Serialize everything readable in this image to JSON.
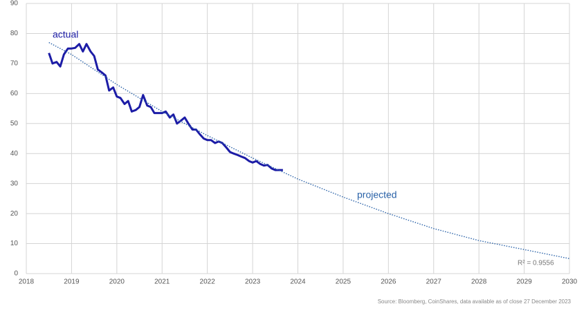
{
  "chart_data": {
    "type": "line",
    "series": [
      {
        "name": "actual",
        "color": "#1c1ca6",
        "style": "solid",
        "x": [
          2018.5,
          2018.58,
          2018.67,
          2018.75,
          2018.83,
          2018.92,
          2019,
          2019.08,
          2019.17,
          2019.25,
          2019.33,
          2019.42,
          2019.5,
          2019.58,
          2019.67,
          2019.75,
          2019.83,
          2019.92,
          2020,
          2020.08,
          2020.17,
          2020.25,
          2020.33,
          2020.42,
          2020.5,
          2020.58,
          2020.67,
          2020.75,
          2020.83,
          2020.92,
          2021,
          2021.08,
          2021.17,
          2021.25,
          2021.33,
          2021.42,
          2021.5,
          2021.58,
          2021.67,
          2021.75,
          2021.83,
          2021.92,
          2022,
          2022.08,
          2022.17,
          2022.25,
          2022.33,
          2022.42,
          2022.5,
          2022.58,
          2022.67,
          2022.75,
          2022.83,
          2022.92,
          2023,
          2023.08,
          2023.17,
          2023.25,
          2023.33,
          2023.42,
          2023.5,
          2023.58,
          2023.67
        ],
        "values": [
          73.5,
          70,
          70.5,
          69,
          73,
          75,
          75,
          75.2,
          76.5,
          74,
          76.5,
          74,
          72.5,
          68,
          67,
          66,
          61,
          62,
          59,
          58.5,
          56.5,
          57.5,
          54,
          54.5,
          55.5,
          59.5,
          56,
          55.5,
          53.5,
          53.5,
          53.5,
          54,
          52,
          53,
          50,
          51,
          52,
          50,
          48,
          48,
          46.5,
          45,
          44.5,
          44.5,
          43.5,
          44,
          43.5,
          42,
          40.5,
          40,
          39.5,
          39,
          38.5,
          37.5,
          37,
          37.5,
          36.5,
          36,
          36.2,
          35,
          34.5,
          34.5,
          34.5
        ]
      },
      {
        "name": "projected",
        "color": "#2a62a8",
        "style": "dotted",
        "x": [
          2018.5,
          2019,
          2020,
          2021,
          2022,
          2023,
          2024,
          2025,
          2026,
          2027,
          2028,
          2029,
          2030
        ],
        "values": [
          77,
          73,
          63,
          54,
          46,
          38.5,
          31.5,
          25.5,
          20,
          15,
          11,
          8,
          5
        ]
      }
    ],
    "annotations": [
      "R² = 0.9556"
    ],
    "source": "Source: Bloomberg, CoinShares, data available as of close 27 December 2023",
    "xlim": [
      2018,
      2030
    ],
    "xticks": [
      2018,
      2019,
      2020,
      2021,
      2022,
      2023,
      2024,
      2025,
      2026,
      2027,
      2028,
      2029,
      2030
    ],
    "ylim": [
      0,
      90
    ],
    "yticks": [
      0,
      10,
      20,
      30,
      40,
      50,
      60,
      70,
      80,
      90
    ],
    "grid": true
  }
}
